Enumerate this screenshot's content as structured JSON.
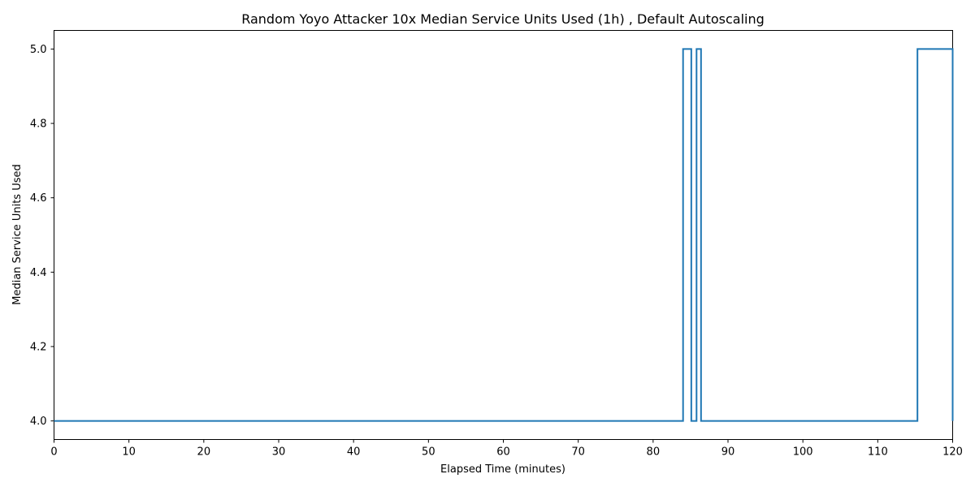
{
  "chart_data": {
    "type": "line",
    "title": "Random Yoyo Attacker 10x Median Service Units Used (1h) , Default Autoscaling",
    "xlabel": "Elapsed Time (minutes)",
    "ylabel": "Median Service Units Used",
    "xlim": [
      0,
      120
    ],
    "ylim": [
      3.95,
      5.05
    ],
    "xticks": [
      0,
      10,
      20,
      30,
      40,
      50,
      60,
      70,
      80,
      90,
      100,
      110,
      120
    ],
    "yticks": [
      4.0,
      4.2,
      4.4,
      4.6,
      4.8,
      5.0
    ],
    "grid": false,
    "legend": "none",
    "colors": {
      "series": "#1f77b4"
    },
    "series": [
      {
        "step": true,
        "x": [
          0,
          84.0,
          85.1,
          85.8,
          86.4,
          115.3,
          120
        ],
        "y": [
          4.0,
          5.0,
          4.0,
          5.0,
          4.0,
          5.0,
          4.0
        ]
      }
    ]
  }
}
